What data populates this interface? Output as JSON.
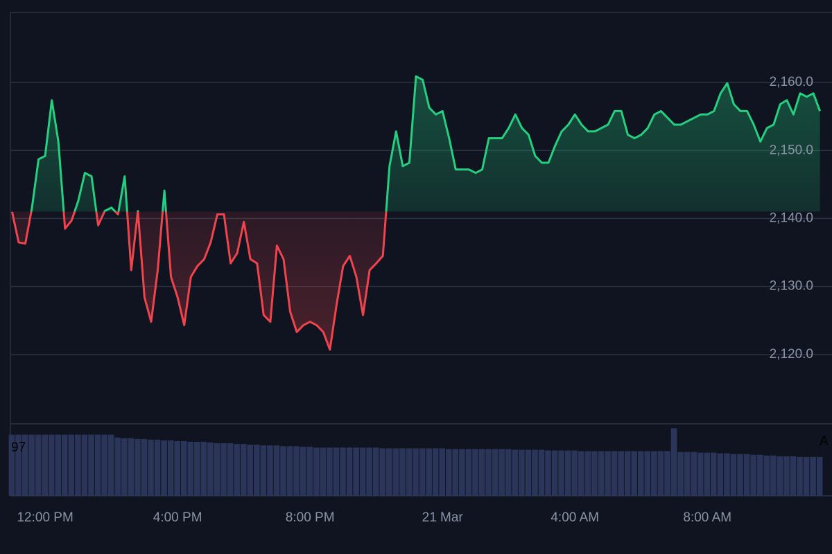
{
  "chart_data": {
    "type": "baseline",
    "x": [
      -1.0,
      -0.8,
      -0.6,
      -0.4,
      -0.2,
      0.0,
      0.2,
      0.4,
      0.6,
      0.8,
      1.0,
      1.2,
      1.4,
      1.6,
      1.8,
      2.0,
      2.2,
      2.4,
      2.6,
      2.8,
      3.0,
      3.2,
      3.4,
      3.6,
      3.8,
      4.0,
      4.2,
      4.4,
      4.6,
      4.8,
      5.0,
      5.2,
      5.4,
      5.6,
      5.8,
      6.0,
      6.2,
      6.4,
      6.6,
      6.8,
      7.0,
      7.2,
      7.4,
      7.6,
      7.8,
      8.0,
      8.2,
      8.4,
      8.6,
      8.8,
      9.0,
      9.2,
      9.4,
      9.6,
      9.8,
      10.0,
      10.2,
      10.4,
      10.6,
      10.8,
      11.0,
      11.2,
      11.4,
      11.6,
      11.8,
      12.0,
      12.2,
      12.4,
      12.6,
      12.8,
      13.0,
      13.2,
      13.4,
      13.6,
      13.8,
      14.0,
      14.2,
      14.4,
      14.6,
      14.8,
      15.0,
      15.2,
      15.4,
      15.6,
      15.8,
      16.0,
      16.2,
      16.4,
      16.6,
      16.8,
      17.0,
      17.2,
      17.4,
      17.6,
      17.8,
      18.0,
      18.2,
      18.4,
      18.6,
      18.8,
      19.0,
      19.2,
      19.4,
      19.6,
      19.8,
      20.0,
      20.2,
      20.4,
      20.6,
      20.8,
      21.0,
      21.2,
      21.4,
      21.6,
      21.8,
      22.0,
      22.2,
      22.4,
      22.6,
      22.8,
      23.0,
      23.2,
      23.4
    ],
    "values": [
      2141.0,
      2136.5,
      2136.3,
      2141.5,
      2148.7,
      2149.2,
      2157.4,
      2151.3,
      2138.5,
      2139.7,
      2142.6,
      2146.7,
      2146.2,
      2139.0,
      2141.1,
      2141.6,
      2140.6,
      2146.2,
      2132.4,
      2141.1,
      2128.4,
      2124.8,
      2132.4,
      2144.1,
      2131.4,
      2128.4,
      2124.3,
      2131.4,
      2133.0,
      2134.0,
      2136.5,
      2140.6,
      2140.6,
      2133.4,
      2134.9,
      2139.5,
      2134.0,
      2133.4,
      2125.8,
      2124.8,
      2136.0,
      2134.0,
      2126.3,
      2123.3,
      2124.3,
      2124.8,
      2124.3,
      2123.3,
      2120.7,
      2127.3,
      2133.0,
      2134.5,
      2131.4,
      2125.8,
      2132.4,
      2133.4,
      2134.5,
      2147.7,
      2152.8,
      2147.7,
      2148.2,
      2160.9,
      2160.4,
      2156.3,
      2155.3,
      2155.8,
      2151.8,
      2147.2,
      2147.2,
      2147.2,
      2146.7,
      2147.2,
      2151.8,
      2151.8,
      2151.8,
      2153.3,
      2155.3,
      2153.3,
      2152.3,
      2149.2,
      2148.2,
      2148.2,
      2150.7,
      2152.8,
      2153.8,
      2155.3,
      2153.8,
      2152.8,
      2152.8,
      2153.3,
      2153.8,
      2155.8,
      2155.8,
      2152.3,
      2151.8,
      2152.3,
      2153.3,
      2155.3,
      2155.8,
      2154.8,
      2153.8,
      2153.8,
      2154.3,
      2154.8,
      2155.3,
      2155.3,
      2155.8,
      2158.4,
      2159.9,
      2156.8,
      2155.8,
      2155.8,
      2153.8,
      2151.3,
      2153.3,
      2153.8,
      2156.8,
      2157.4,
      2155.3,
      2158.4,
      2157.9,
      2158.4,
      2155.8
    ],
    "baseline": 2141.0,
    "up_color": "#26cf7f",
    "down_color": "#f0444d",
    "xlim": [
      -1.05,
      23.45
    ],
    "xticks": [
      {
        "value": 0,
        "label": "12:00 PM"
      },
      {
        "value": 4,
        "label": "4:00 PM"
      },
      {
        "value": 8,
        "label": "8:00 PM"
      },
      {
        "value": 12,
        "label": "21 Mar"
      },
      {
        "value": 16,
        "label": "4:00 AM"
      },
      {
        "value": 20,
        "label": "8:00 AM"
      }
    ],
    "ylim": [
      2109.8,
      2170.3
    ],
    "yticks": [
      {
        "value": 2120,
        "label": "2,120.0"
      },
      {
        "value": 2130,
        "label": "2,130.0"
      },
      {
        "value": 2140,
        "label": "2,140.0"
      },
      {
        "value": 2150,
        "label": "2,150.0"
      },
      {
        "value": 2160,
        "label": "2,160.0"
      }
    ],
    "grid": true,
    "volume": {
      "color": "#2b3559",
      "ylim": [
        0,
        100
      ],
      "values": [
        85,
        85,
        85,
        85,
        85,
        85,
        85,
        85,
        85,
        85,
        85,
        85,
        85,
        85,
        85,
        85,
        81,
        80,
        80,
        79,
        79,
        78,
        78,
        77,
        77,
        76,
        76,
        75,
        75,
        75,
        74,
        73,
        73,
        73,
        72,
        72,
        71,
        71,
        70,
        70,
        70,
        69,
        69,
        69,
        68,
        68,
        67,
        67,
        67,
        67,
        67,
        67,
        67,
        67,
        67,
        67,
        66,
        66,
        66,
        66,
        66,
        66,
        66,
        66,
        66,
        66,
        65,
        65,
        65,
        65,
        65,
        65,
        65,
        65,
        65,
        65,
        64,
        64,
        64,
        64,
        64,
        63,
        63,
        63,
        63,
        63,
        62,
        62,
        62,
        62,
        62,
        62,
        62,
        62,
        62,
        62,
        62,
        62,
        62,
        62,
        94,
        61,
        61,
        61,
        60,
        60,
        60,
        59,
        59,
        58,
        58,
        58,
        57,
        57,
        56,
        56,
        55,
        55,
        55,
        54,
        54,
        54,
        54
      ],
      "labels": [
        "97",
        "A"
      ]
    }
  }
}
